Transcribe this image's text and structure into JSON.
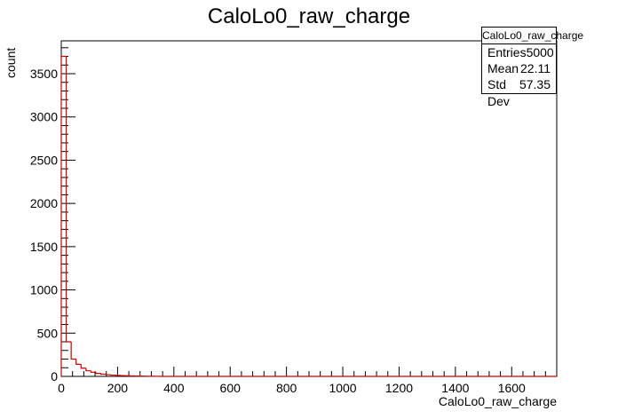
{
  "chart_data": {
    "type": "histogram",
    "title": "CaloLo0_raw_charge",
    "xlabel": "CaloLo0_raw_charge",
    "ylabel": "count",
    "xlim": [
      0,
      1760
    ],
    "ylim": [
      0,
      3880
    ],
    "x_ticks": [
      0,
      200,
      400,
      600,
      800,
      1000,
      1200,
      1400,
      1600
    ],
    "y_ticks": [
      0,
      500,
      1000,
      1500,
      2000,
      2500,
      3000,
      3500
    ],
    "bin_width": 17.6,
    "bins": [
      {
        "x": 0,
        "count": 3700
      },
      {
        "x": 17.6,
        "count": 400
      },
      {
        "x": 35.2,
        "count": 200
      },
      {
        "x": 52.8,
        "count": 140
      },
      {
        "x": 70.4,
        "count": 95
      },
      {
        "x": 88,
        "count": 65
      },
      {
        "x": 105.6,
        "count": 48
      },
      {
        "x": 123.2,
        "count": 35
      },
      {
        "x": 140.8,
        "count": 26
      },
      {
        "x": 158.4,
        "count": 20
      },
      {
        "x": 176,
        "count": 15
      },
      {
        "x": 193.6,
        "count": 12
      },
      {
        "x": 211.2,
        "count": 9
      },
      {
        "x": 228.8,
        "count": 7
      },
      {
        "x": 246.4,
        "count": 5
      },
      {
        "x": 264,
        "count": 4
      },
      {
        "x": 281.6,
        "count": 3
      },
      {
        "x": 299.2,
        "count": 2
      },
      {
        "x": 316.8,
        "count": 1
      },
      {
        "x": 334.4,
        "count": 1
      }
    ],
    "line_color": "#cc0000",
    "stats": {
      "title": "CaloLo0_raw_charge",
      "rows": [
        {
          "label": "Entries",
          "value": "5000"
        },
        {
          "label": "Mean",
          "value": "22.11"
        },
        {
          "label": "Std Dev",
          "value": "57.35"
        }
      ]
    }
  }
}
